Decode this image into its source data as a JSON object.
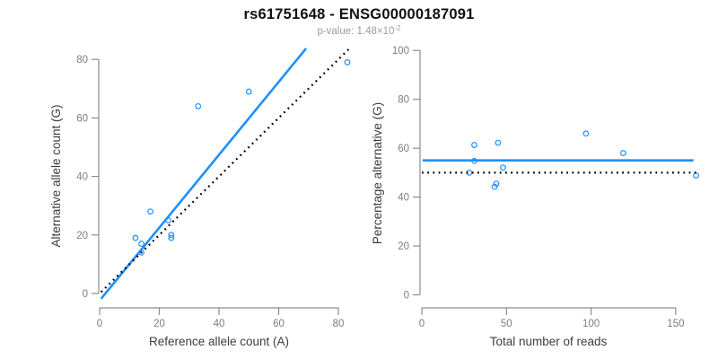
{
  "page": {
    "title": "rs61751648 - ENSG00000187091",
    "subtitle_prefix": "p-value: 1.48×10",
    "subtitle_exponent": "-2"
  },
  "colors": {
    "accent_blue": "#1E90FF",
    "dotted_black": "#000000",
    "axis_gray": "#8c8c8c",
    "tick_label_gray": "#7d7d7d",
    "axis_title_dark": "#3d3d3d",
    "title_black": "#111111",
    "subtitle_gray": "#9b9b9b"
  },
  "chart_data": [
    {
      "type": "scatter",
      "name": "allele-count-scatter",
      "xlabel": "Reference allele count (A)",
      "ylabel": "Alternative allele count (G)",
      "xlim": [
        0,
        84
      ],
      "ylim": [
        0,
        83
      ],
      "x_ticks": [
        0,
        20,
        40,
        60,
        80
      ],
      "y_ticks": [
        0,
        20,
        40,
        60,
        80
      ],
      "grid": false,
      "points": [
        [
          12,
          19
        ],
        [
          14,
          17
        ],
        [
          14,
          14
        ],
        [
          17,
          28
        ],
        [
          23,
          25
        ],
        [
          24,
          19
        ],
        [
          24,
          20
        ],
        [
          33,
          64
        ],
        [
          50,
          69
        ],
        [
          83,
          79
        ]
      ],
      "lines": [
        {
          "name": "regression-line",
          "style": "solid",
          "color": "#1E90FF",
          "slope": 1.245,
          "intercept": -2.4,
          "x_range": [
            0.5,
            69.2
          ]
        },
        {
          "name": "identity-line",
          "style": "dotted",
          "color": "#000000",
          "slope": 1,
          "intercept": 0,
          "x_range": [
            0.5,
            83.4
          ]
        }
      ]
    },
    {
      "type": "scatter",
      "name": "percentage-reads-scatter",
      "xlabel": "Total number of reads",
      "ylabel": "Percentage alternative (G)",
      "xlim": [
        0,
        163
      ],
      "ylim": [
        0,
        100
      ],
      "x_ticks": [
        0,
        50,
        100,
        150
      ],
      "y_ticks": [
        0,
        20,
        40,
        60,
        80,
        100
      ],
      "grid": false,
      "points": [
        [
          31,
          61.3
        ],
        [
          31,
          54.8
        ],
        [
          28,
          50
        ],
        [
          45,
          62.2
        ],
        [
          48,
          52.1
        ],
        [
          43,
          44.2
        ],
        [
          44,
          45.5
        ],
        [
          97,
          66
        ],
        [
          119,
          58
        ],
        [
          162,
          48.8
        ]
      ],
      "lines": [
        {
          "name": "mean-percentage-line",
          "style": "solid",
          "color": "#1E90FF",
          "slope": 0,
          "intercept": 55,
          "x_range": [
            0.5,
            160.5
          ]
        },
        {
          "name": "expected-50-line",
          "style": "dotted",
          "color": "#000000",
          "slope": 0,
          "intercept": 50,
          "x_range": [
            0,
            162.5
          ]
        }
      ]
    }
  ]
}
